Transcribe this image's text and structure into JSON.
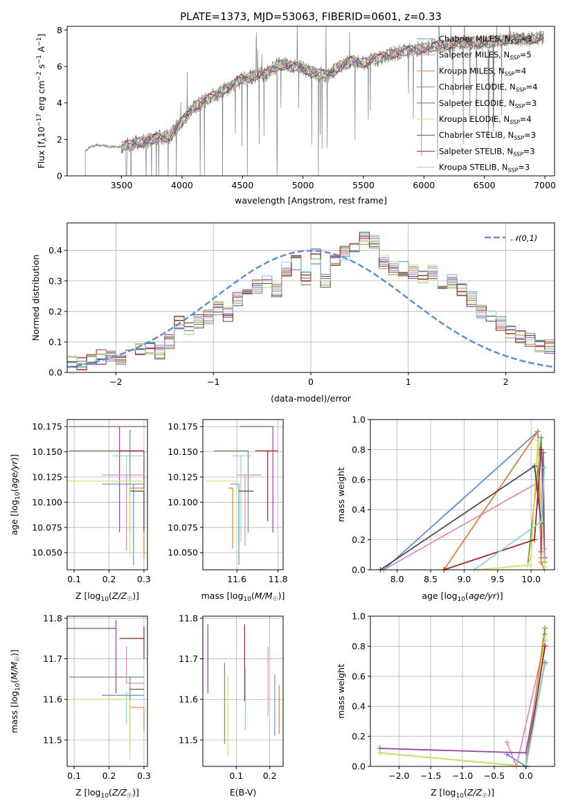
{
  "title": "PLATE=1373, MJD=53063, FIBERID=0601, z=0.33",
  "colors": {
    "Chabrier MILES": "#5b8fd6",
    "Salpeter MILES": "#e389c2",
    "Kroupa MILES": "#e1802f",
    "Chabrier ELODIE": "#5e9a58",
    "Salpeter ELODIE": "#9b3dae",
    "Kroupa ELODIE": "#d6e25c",
    "Chabrier STELIB": "#4d4d4d",
    "Salpeter STELIB": "#b11d21",
    "Kroupa STELIB": "#87d6d8",
    "data": "#808080",
    "normal": "#5b8fd6"
  },
  "chart_data": [
    {
      "id": "spectrum",
      "type": "line",
      "xlabel": "wavelength [Angstrom, rest frame]",
      "ylabel": "Flux [f_λ 10^-17 erg cm^-2 s^-1 A^-1]",
      "xlim": [
        3050,
        7080
      ],
      "ylim": [
        0,
        8.2
      ],
      "xticks": [
        3500,
        4000,
        4500,
        5000,
        5500,
        6000,
        6500,
        7000
      ],
      "yticks": [
        0,
        2,
        4,
        6,
        8
      ],
      "grid": false,
      "legend_position": "upper right",
      "legend": [
        {
          "label": "Chabrier MILES, N",
          "sub": "SSP",
          "suffix": "=3",
          "model": "Chabrier MILES"
        },
        {
          "label": "Salpeter MILES, N",
          "sub": "SSP",
          "suffix": "=5",
          "model": "Salpeter MILES"
        },
        {
          "label": "Kroupa MILES, N",
          "sub": "SSP",
          "suffix": "=4",
          "model": "Kroupa MILES"
        },
        {
          "label": "Chabrier ELODIE, N",
          "sub": "SSP",
          "suffix": "=4",
          "model": "Chabrier ELODIE"
        },
        {
          "label": "Salpeter ELODIE, N",
          "sub": "SSP",
          "suffix": "=3",
          "model": "Salpeter ELODIE"
        },
        {
          "label": "Kroupa ELODIE, N",
          "sub": "SSP",
          "suffix": "=4",
          "model": "Kroupa ELODIE"
        },
        {
          "label": "Chabrier STELIB, N",
          "sub": "SSP",
          "suffix": "=3",
          "model": "Chabrier STELIB"
        },
        {
          "label": "Salpeter STELIB, N",
          "sub": "SSP",
          "suffix": "=3",
          "model": "Salpeter STELIB"
        },
        {
          "label": "Kroupa STELIB, N",
          "sub": "SSP",
          "suffix": "=3",
          "model": "Kroupa STELIB"
        }
      ],
      "continuum": {
        "x": [
          3200,
          3250,
          3300,
          3400,
          3500,
          3600,
          3700,
          3800,
          3900,
          4000,
          4100,
          4200,
          4300,
          4400,
          4500,
          4600,
          4700,
          4800,
          4900,
          5000,
          5100,
          5200,
          5300,
          5400,
          5500,
          5600,
          5700,
          5800,
          5900,
          6000,
          6100,
          6200,
          6300,
          6400,
          6500,
          6600,
          6700,
          6800,
          6900,
          7000
        ],
        "y": [
          1.4,
          1.6,
          1.7,
          1.6,
          1.6,
          1.8,
          1.9,
          2.1,
          2.2,
          3.0,
          3.8,
          4.2,
          4.5,
          4.9,
          5.3,
          5.5,
          5.6,
          6.1,
          6.0,
          5.9,
          5.6,
          5.5,
          6.0,
          6.3,
          6.2,
          6.4,
          6.6,
          6.8,
          6.9,
          7.0,
          7.1,
          7.2,
          7.3,
          7.3,
          7.3,
          7.4,
          7.5,
          7.5,
          7.5,
          7.6
        ]
      },
      "data_range": [
        3200,
        6990
      ]
    },
    {
      "id": "residuals",
      "type": "step",
      "xlabel": "(data-model)/error",
      "ylabel": "Normed distribution",
      "xlim": [
        -2.5,
        2.5
      ],
      "ylim": [
        0,
        0.49
      ],
      "xticks": [
        -2,
        -1,
        0,
        1,
        2
      ],
      "yticks": [
        0.0,
        0.1,
        0.2,
        0.3,
        0.4
      ],
      "grid": true,
      "legend_position": "upper right",
      "legend_label": "𝒩(0,1)",
      "bins": 50,
      "bin_width": 0.1,
      "base_values": [
        0.035,
        0.03,
        0.04,
        0.05,
        0.055,
        0.05,
        0.06,
        0.075,
        0.08,
        0.065,
        0.1,
        0.16,
        0.14,
        0.17,
        0.18,
        0.21,
        0.19,
        0.24,
        0.26,
        0.28,
        0.3,
        0.27,
        0.34,
        0.36,
        0.31,
        0.38,
        0.3,
        0.36,
        0.39,
        0.4,
        0.44,
        0.43,
        0.36,
        0.34,
        0.34,
        0.33,
        0.31,
        0.33,
        0.29,
        0.3,
        0.27,
        0.24,
        0.2,
        0.19,
        0.16,
        0.13,
        0.12,
        0.11,
        0.09,
        0.085
      ]
    },
    {
      "id": "age-vs-Z",
      "type": "errorbar",
      "xlabel": "Z [log10(Z/Z☉)]",
      "ylabel": "age [log10(age/yr)]",
      "xlim": [
        0.08,
        0.31
      ],
      "ylim": [
        10.033,
        10.182
      ],
      "xticks": [
        0.1,
        0.2,
        0.3
      ],
      "yticks": [
        10.05,
        10.075,
        10.1,
        10.125,
        10.15,
        10.175
      ],
      "grid": true,
      "points": [
        {
          "model": "Salpeter ELODIE",
          "x": 0.23,
          "xerr": [
            0.145,
            0.075
          ],
          "y": 10.175,
          "yerr": [
            0.105,
            0.0
          ]
        },
        {
          "model": "Chabrier ELODIE",
          "x": 0.26,
          "xerr": [
            0.175,
            0.04
          ],
          "y": 10.151,
          "yerr": [
            0.081,
            0.021
          ]
        },
        {
          "model": "Salpeter STELIB",
          "x": 0.3,
          "xerr": [
            0.07,
            0.0
          ],
          "y": 10.151,
          "yerr": [
            0.081,
            0.0
          ]
        },
        {
          "model": "Kroupa STELIB",
          "x": 0.25,
          "xerr": [
            0.04,
            0.05
          ],
          "y": 10.146,
          "yerr": [
            0.09,
            0.0
          ]
        },
        {
          "model": "Salpeter MILES",
          "x": 0.25,
          "xerr": [
            0.07,
            0.05
          ],
          "y": 10.127,
          "yerr": [
            0.075,
            0.0
          ]
        },
        {
          "model": "Kroupa ELODIE",
          "x": 0.26,
          "xerr": [
            0.18,
            0.04
          ],
          "y": 10.121,
          "yerr": [
            0.075,
            0.0
          ]
        },
        {
          "model": "Chabrier MILES",
          "x": 0.27,
          "xerr": [
            0.09,
            0.03
          ],
          "y": 10.118,
          "yerr": [
            0.08,
            0.0
          ]
        },
        {
          "model": "Kroupa MILES",
          "x": 0.3,
          "xerr": [
            0.04,
            0.0
          ],
          "y": 10.114,
          "yerr": [
            0.07,
            0.0
          ]
        },
        {
          "model": "Chabrier STELIB",
          "x": 0.3,
          "xerr": [
            0.04,
            0.0
          ],
          "y": 10.111,
          "yerr": [
            0.04,
            0.0
          ]
        }
      ]
    },
    {
      "id": "age-vs-mass",
      "type": "errorbar",
      "xlabel": "mass [log10(M/M☉)]",
      "ylabel": "",
      "xlim": [
        11.435,
        11.825
      ],
      "ylim": [
        10.033,
        10.182
      ],
      "xticks": [
        11.6,
        11.8
      ],
      "yticks": [
        10.05,
        10.075,
        10.1,
        10.125,
        10.15,
        10.175
      ],
      "grid": true,
      "points": [
        {
          "model": "Salpeter ELODIE",
          "x": 11.775,
          "xerr": [
            0.16,
            0.0
          ],
          "y": 10.175,
          "yerr": [
            0.105,
            0.0
          ]
        },
        {
          "model": "Chabrier ELODIE",
          "x": 11.655,
          "xerr": [
            0.165,
            0.0
          ],
          "y": 10.151,
          "yerr": [
            0.081,
            0.0
          ]
        },
        {
          "model": "Salpeter STELIB",
          "x": 11.75,
          "xerr": [
            0.06,
            0.05
          ],
          "y": 10.151,
          "yerr": [
            0.07,
            0.0
          ]
        },
        {
          "model": "Kroupa STELIB",
          "x": 11.62,
          "xerr": [
            0.04,
            0.05
          ],
          "y": 10.146,
          "yerr": [
            0.085,
            0.0
          ]
        },
        {
          "model": "Salpeter MILES",
          "x": 11.64,
          "xerr": [
            0.04,
            0.08
          ],
          "y": 10.127,
          "yerr": [
            0.07,
            0.0
          ]
        },
        {
          "model": "Kroupa ELODIE",
          "x": 11.6,
          "xerr": [
            0.15,
            0.0
          ],
          "y": 10.121,
          "yerr": [
            0.075,
            0.0
          ]
        },
        {
          "model": "Chabrier MILES",
          "x": 11.61,
          "xerr": [
            0.04,
            0.0
          ],
          "y": 10.118,
          "yerr": [
            0.08,
            0.0
          ]
        },
        {
          "model": "Kroupa MILES",
          "x": 11.58,
          "xerr": [
            0.02,
            0.0
          ],
          "y": 10.114,
          "yerr": [
            0.06,
            0.0
          ]
        },
        {
          "model": "Chabrier STELIB",
          "x": 11.63,
          "xerr": [
            0.02,
            0.05
          ],
          "y": 10.111,
          "yerr": [
            0.0,
            0.0
          ]
        }
      ]
    },
    {
      "id": "massweight-vs-age",
      "type": "line",
      "xlabel": "age [log10(age/yr)]",
      "ylabel": "mass weight",
      "xlim": [
        7.6,
        10.35
      ],
      "ylim": [
        0,
        1.0
      ],
      "xticks": [
        8.0,
        8.5,
        9.0,
        9.5,
        10.0
      ],
      "yticks": [
        0.0,
        0.2,
        0.4,
        0.6,
        0.8,
        1.0
      ],
      "grid": true,
      "series": [
        {
          "model": "Chabrier MILES",
          "x": [
            7.8,
            10.1,
            10.15
          ],
          "y": [
            0.0,
            0.92,
            0.08
          ]
        },
        {
          "model": "Salpeter MILES",
          "x": [
            7.8,
            10.1,
            10.15,
            10.2
          ],
          "y": [
            0.0,
            0.58,
            0.28,
            0.14
          ]
        },
        {
          "model": "Kroupa MILES",
          "x": [
            8.7,
            10.1,
            10.15,
            10.2
          ],
          "y": [
            0.0,
            0.92,
            0.05,
            0.0
          ]
        },
        {
          "model": "Chabrier ELODIE",
          "x": [
            9.95,
            10.15,
            10.2
          ],
          "y": [
            0.03,
            0.88,
            0.05
          ]
        },
        {
          "model": "Salpeter ELODIE",
          "x": [
            10.15,
            10.18,
            10.2
          ],
          "y": [
            0.12,
            0.78,
            0.08
          ]
        },
        {
          "model": "Kroupa ELODIE",
          "x": [
            9.2,
            9.95,
            10.0,
            10.1,
            10.2
          ],
          "y": [
            0.0,
            0.03,
            0.09,
            0.86,
            0.02
          ]
        },
        {
          "model": "Chabrier STELIB",
          "x": [
            7.75,
            10.05,
            10.15
          ],
          "y": [
            0.0,
            0.69,
            0.31
          ]
        },
        {
          "model": "Salpeter STELIB",
          "x": [
            8.7,
            10.05,
            10.15
          ],
          "y": [
            0.0,
            0.2,
            0.8
          ]
        },
        {
          "model": "Kroupa STELIB",
          "x": [
            9.15,
            10.15,
            10.2
          ],
          "y": [
            0.0,
            0.32,
            0.68
          ]
        }
      ]
    },
    {
      "id": "mass-vs-Z",
      "type": "errorbar",
      "xlabel": "Z [log10(Z/Z☉)]",
      "ylabel": "mass [log10(M/M☉)]",
      "xlim": [
        0.08,
        0.31
      ],
      "ylim": [
        11.435,
        11.805
      ],
      "xticks": [
        0.1,
        0.2,
        0.3
      ],
      "yticks": [
        11.5,
        11.6,
        11.7,
        11.8
      ],
      "grid": true,
      "points": [
        {
          "model": "Salpeter ELODIE",
          "x": 0.22,
          "xerr": [
            0.14,
            0.0
          ],
          "y": 11.775,
          "yerr": [
            0.16,
            0.02
          ]
        },
        {
          "model": "Salpeter STELIB",
          "x": 0.3,
          "xerr": [
            0.07,
            0.0
          ],
          "y": 11.75,
          "yerr": [
            0.05,
            0.03
          ]
        },
        {
          "model": "Salpeter MILES",
          "x": 0.25,
          "xerr": [
            0.0,
            0.05
          ],
          "y": 11.64,
          "yerr": [
            0.0,
            0.09
          ]
        },
        {
          "model": "Chabrier ELODIE",
          "x": 0.26,
          "xerr": [
            0.175,
            0.04
          ],
          "y": 11.655,
          "yerr": [
            0.165,
            0.0
          ]
        },
        {
          "model": "Chabrier STELIB",
          "x": 0.26,
          "xerr": [
            0.0,
            0.04
          ],
          "y": 11.625,
          "yerr": [
            0.0,
            0.0
          ]
        },
        {
          "model": "Chabrier MILES",
          "x": 0.27,
          "xerr": [
            0.09,
            0.03
          ],
          "y": 11.61,
          "yerr": [
            0.0,
            0.0
          ]
        },
        {
          "model": "Kroupa ELODIE",
          "x": 0.26,
          "xerr": [
            0.18,
            0.0
          ],
          "y": 11.6,
          "yerr": [
            0.15,
            0.0
          ]
        },
        {
          "model": "Kroupa MILES",
          "x": 0.3,
          "xerr": [
            0.04,
            0.0
          ],
          "y": 11.58,
          "yerr": [
            0.06,
            0.0
          ]
        },
        {
          "model": "Kroupa STELIB",
          "x": 0.25,
          "xerr": [
            0.0,
            0.0
          ],
          "y": 11.62,
          "yerr": [
            0.08,
            0.0
          ]
        }
      ]
    },
    {
      "id": "mass-vs-ebv",
      "type": "errorbar",
      "xlabel": "E(B-V)",
      "ylabel": "",
      "xlim": [
        0.0,
        0.24
      ],
      "ylim": [
        11.435,
        11.805
      ],
      "xticks": [
        0.1,
        0.2
      ],
      "yticks": [
        11.5,
        11.6,
        11.7,
        11.8
      ],
      "grid": true,
      "points": [
        {
          "model": "Salpeter ELODIE",
          "x": 0.015,
          "y": 11.7,
          "yerr": [
            0.085,
            0.085
          ]
        },
        {
          "model": "Chabrier ELODIE",
          "x": 0.065,
          "y": 11.59,
          "yerr": [
            0.1,
            0.1
          ]
        },
        {
          "model": "Kroupa ELODIE",
          "x": 0.075,
          "y": 11.56,
          "yerr": [
            0.1,
            0.1
          ]
        },
        {
          "model": "Salpeter STELIB",
          "x": 0.125,
          "y": 11.69,
          "yerr": [
            0.095,
            0.095
          ]
        },
        {
          "model": "Kroupa STELIB",
          "x": 0.127,
          "y": 11.6,
          "yerr": [
            0.075,
            0.075
          ]
        },
        {
          "model": "Salpeter MILES",
          "x": 0.195,
          "y": 11.645,
          "yerr": [
            0.085,
            0.085
          ]
        },
        {
          "model": "Chabrier MILES",
          "x": 0.215,
          "y": 11.585,
          "yerr": [
            0.075,
            0.075
          ]
        },
        {
          "model": "Kroupa MILES",
          "x": 0.228,
          "y": 11.575,
          "yerr": [
            0.06,
            0.06
          ]
        }
      ]
    },
    {
      "id": "massweight-vs-Z",
      "type": "line",
      "xlabel": "Z [log10(Z/Z☉)]",
      "ylabel": "mass weight",
      "xlim": [
        -2.45,
        0.45
      ],
      "ylim": [
        0,
        1.0
      ],
      "xticks": [
        -2.0,
        -1.5,
        -1.0,
        -0.5,
        0.0
      ],
      "yticks": [
        0.0,
        0.2,
        0.4,
        0.6,
        0.8,
        1.0
      ],
      "grid": true,
      "series": [
        {
          "model": "Chabrier MILES",
          "x": [
            -0.3,
            0.0,
            0.3
          ],
          "y": [
            0.08,
            0.0,
            0.92
          ]
        },
        {
          "model": "Salpeter MILES",
          "x": [
            -0.3,
            -0.15,
            0.3
          ],
          "y": [
            0.16,
            0.0,
            0.84
          ]
        },
        {
          "model": "Kroupa MILES",
          "x": [
            0.0,
            0.3
          ],
          "y": [
            0.0,
            0.92
          ]
        },
        {
          "model": "Chabrier ELODIE",
          "x": [
            -2.3,
            0.0,
            0.3
          ],
          "y": [
            0.09,
            0.0,
            0.88
          ]
        },
        {
          "model": "Salpeter ELODIE",
          "x": [
            -2.3,
            0.0,
            0.3
          ],
          "y": [
            0.12,
            0.09,
            0.8
          ]
        },
        {
          "model": "Kroupa ELODIE",
          "x": [
            -2.3,
            0.0,
            0.3
          ],
          "y": [
            0.09,
            0.0,
            0.86
          ]
        },
        {
          "model": "Chabrier STELIB",
          "x": [
            0.0,
            0.3
          ],
          "y": [
            0.0,
            0.69
          ]
        },
        {
          "model": "Salpeter STELIB",
          "x": [
            0.0,
            0.3
          ],
          "y": [
            0.0,
            0.8
          ]
        },
        {
          "model": "Kroupa STELIB",
          "x": [
            0.0,
            0.3
          ],
          "y": [
            0.0,
            0.68
          ]
        }
      ]
    }
  ]
}
